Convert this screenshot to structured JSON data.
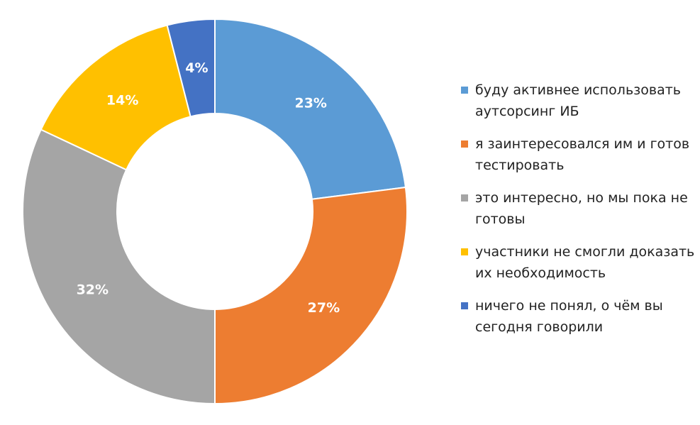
{
  "chart_data": {
    "type": "pie",
    "donut": true,
    "legend_position": "right",
    "series": [
      {
        "label": "буду активнее использовать аутсорсинг ИБ",
        "value": 23,
        "display": "23%",
        "color": "#5B9BD5"
      },
      {
        "label": "я заинтересовался им и готов тестировать",
        "value": 27,
        "display": "27%",
        "color": "#ED7D31"
      },
      {
        "label": "это интересно, но мы пока не готовы",
        "value": 32,
        "display": "32%",
        "color": "#A5A5A5"
      },
      {
        "label": "участники не смогли доказать их необходимость",
        "value": 14,
        "display": "14%",
        "color": "#FFC000"
      },
      {
        "label": "ничего не понял, о чём вы сегодня говорили",
        "value": 4,
        "display": "4%",
        "color": "#4472C4"
      }
    ]
  }
}
